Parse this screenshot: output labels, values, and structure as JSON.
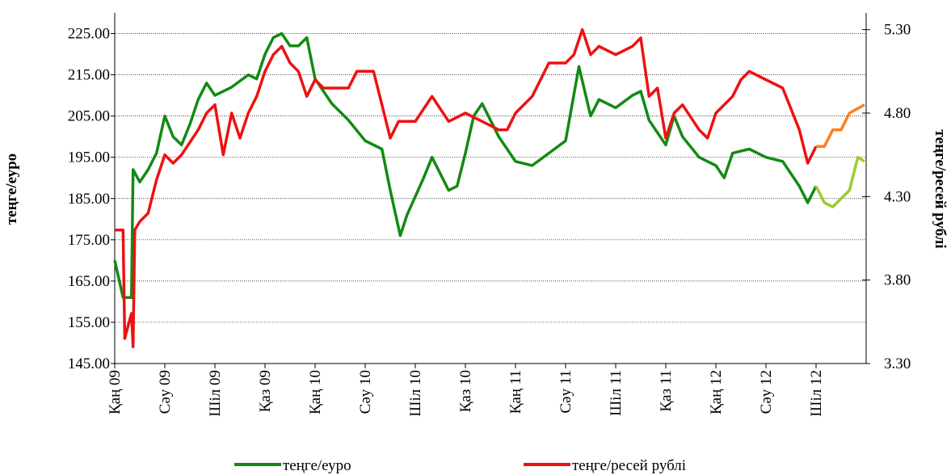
{
  "chart_data": {
    "type": "line",
    "ylabel": "теңге/еуро",
    "y2label": "теңге/ресей рублі",
    "xlim": [
      0,
      45
    ],
    "ylim": [
      145,
      230
    ],
    "y2lim": [
      3.3,
      5.4
    ],
    "grid": true,
    "legend": "bottom",
    "split_x": 42,
    "xticks": [
      {
        "value": 0,
        "label": "Қаң 09"
      },
      {
        "value": 3,
        "label": "Сәу 09"
      },
      {
        "value": 6,
        "label": "Шіл 09"
      },
      {
        "value": 9,
        "label": "Қаз 09"
      },
      {
        "value": 12,
        "label": "Қаң 10"
      },
      {
        "value": 15,
        "label": "Сәу 10"
      },
      {
        "value": 18,
        "label": "Шіл 10"
      },
      {
        "value": 21,
        "label": "Қаз 10"
      },
      {
        "value": 24,
        "label": "Қаң 11"
      },
      {
        "value": 27,
        "label": "Сәу 11"
      },
      {
        "value": 30,
        "label": "Шіл 11"
      },
      {
        "value": 33,
        "label": "Қаз 11"
      },
      {
        "value": 36,
        "label": "Қаң 12"
      },
      {
        "value": 39,
        "label": "Сәу 12"
      },
      {
        "value": 42,
        "label": "Шіл 12"
      }
    ],
    "yticks": [
      {
        "value": 145,
        "label": "145.00"
      },
      {
        "value": 155,
        "label": "155.00"
      },
      {
        "value": 165,
        "label": "165.00"
      },
      {
        "value": 175,
        "label": "175.00"
      },
      {
        "value": 185,
        "label": "185.00"
      },
      {
        "value": 195,
        "label": "195.00"
      },
      {
        "value": 205,
        "label": "205.00"
      },
      {
        "value": 215,
        "label": "215.00"
      },
      {
        "value": 225,
        "label": "225.00"
      }
    ],
    "y2ticks": [
      {
        "value": 3.3,
        "label": "3.30"
      },
      {
        "value": 3.8,
        "label": "3.80"
      },
      {
        "value": 4.3,
        "label": "4.30"
      },
      {
        "value": 4.8,
        "label": "4.80"
      },
      {
        "value": 5.3,
        "label": "5.30"
      }
    ],
    "series": [
      {
        "name": "теңге/еуро",
        "color": "#138a13",
        "color_after": "#9acd32",
        "x": [
          0,
          0.5,
          1,
          1.1,
          1.5,
          2,
          2.5,
          3,
          3.5,
          4,
          4.5,
          5,
          5.5,
          6,
          7,
          8,
          8.5,
          9,
          9.5,
          10,
          10.5,
          11,
          11.5,
          12,
          13,
          14,
          15,
          16,
          16.5,
          17.1,
          17.5,
          18.5,
          19,
          20,
          20.5,
          21,
          21.5,
          22,
          23,
          24,
          25,
          26,
          27,
          27.8,
          28.5,
          29,
          30,
          31,
          31.5,
          32,
          33,
          33.5,
          34,
          35,
          36,
          36.5,
          37,
          38,
          39,
          40,
          41,
          41.5,
          42,
          42.5,
          43,
          44,
          44.5,
          44.9
        ],
        "values": [
          170,
          161,
          161,
          192,
          189,
          192,
          196,
          205,
          200,
          198,
          203,
          209,
          213,
          210,
          212,
          215,
          214,
          220,
          224,
          225,
          222,
          222,
          224,
          214,
          208,
          204,
          199,
          197,
          187,
          176,
          181,
          190,
          195,
          187,
          188,
          196,
          205,
          208,
          200,
          194,
          193,
          196,
          199,
          217,
          205,
          209,
          207,
          210,
          211,
          204,
          198,
          205,
          200,
          195,
          193,
          190,
          196,
          197,
          195,
          194,
          188,
          184,
          188,
          184,
          183,
          187,
          195,
          194
        ]
      },
      {
        "name": "теңге/ресей рублі",
        "color": "#ee1111",
        "color_after": "#ff7f1a",
        "axis": "y2",
        "x": [
          0,
          0.5,
          0.6,
          1,
          1.1,
          1.2,
          1.5,
          2,
          2.5,
          3,
          3.5,
          4,
          5,
          5.5,
          6,
          6.5,
          7,
          7.5,
          8,
          8.5,
          9,
          9.5,
          10,
          10.5,
          11,
          11.5,
          12,
          12.5,
          13,
          14,
          14.5,
          15,
          15.5,
          16,
          16.5,
          17,
          18,
          19,
          20,
          21,
          22,
          23,
          23.5,
          24,
          25,
          26,
          27,
          27.5,
          28,
          28.5,
          29,
          30,
          31,
          31.5,
          32,
          32.5,
          33,
          33.5,
          34,
          35,
          35.5,
          36,
          37,
          37.5,
          38,
          39,
          40,
          41,
          41.5,
          42,
          42.5,
          43,
          43.5,
          44,
          44.9
        ],
        "values": [
          4.1,
          4.1,
          3.45,
          3.6,
          3.4,
          4.1,
          4.15,
          4.2,
          4.4,
          4.55,
          4.5,
          4.55,
          4.7,
          4.8,
          4.85,
          4.55,
          4.8,
          4.65,
          4.8,
          4.9,
          5.05,
          5.15,
          5.2,
          5.1,
          5.05,
          4.9,
          5.0,
          4.95,
          4.95,
          4.95,
          5.05,
          5.05,
          5.05,
          4.85,
          4.65,
          4.75,
          4.75,
          4.9,
          4.75,
          4.8,
          4.75,
          4.7,
          4.7,
          4.8,
          4.9,
          5.1,
          5.1,
          5.15,
          5.3,
          5.15,
          5.2,
          5.15,
          5.2,
          5.25,
          4.9,
          4.95,
          4.65,
          4.8,
          4.85,
          4.7,
          4.65,
          4.8,
          4.9,
          5.0,
          5.05,
          5.0,
          4.95,
          4.7,
          4.5,
          4.6,
          4.6,
          4.7,
          4.7,
          4.8,
          4.85
        ]
      }
    ]
  }
}
